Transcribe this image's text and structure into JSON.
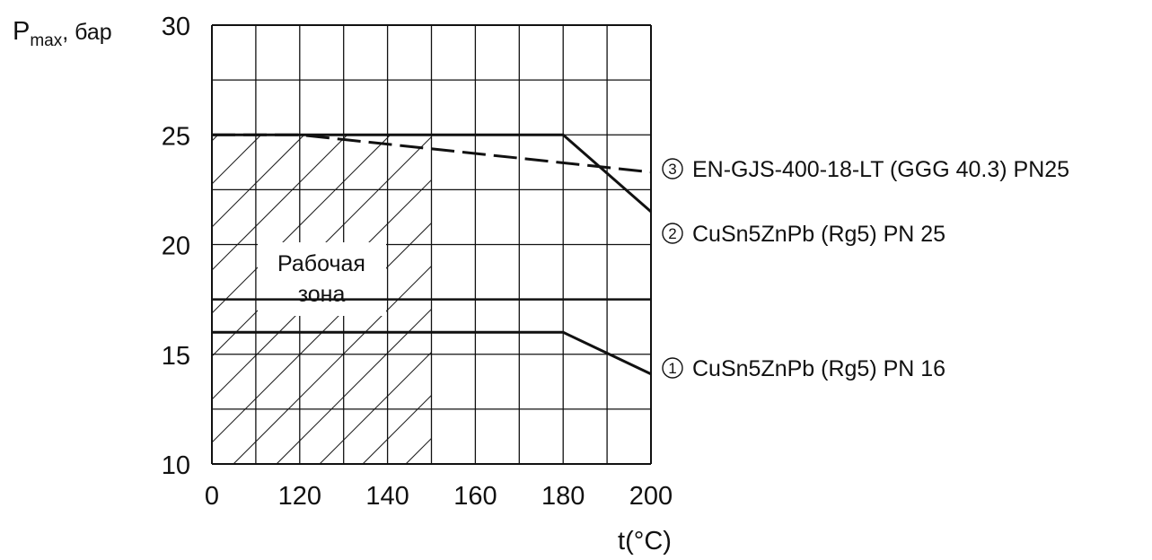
{
  "chart_data": {
    "type": "line",
    "ylabel_main": "P",
    "ylabel_sub": "max",
    "ylabel_unit": ", бар",
    "xlabel": "t(°C)",
    "x_categories": [
      "0",
      "120",
      "140",
      "160",
      "180",
      "200"
    ],
    "y_ticks": [
      10,
      15,
      20,
      25,
      30
    ],
    "ylim": [
      10,
      30
    ],
    "grid": true,
    "zone_label_lines": [
      "Рабочая",
      "зона"
    ],
    "zone_to_category": "150",
    "series": [
      {
        "name": "EN-GJS-400-18-LT (GGG 40.3) PN25",
        "marker": "3",
        "style": "dashed",
        "points": [
          [
            "0",
            25
          ],
          [
            "120",
            25
          ],
          [
            "200",
            23.3
          ]
        ]
      },
      {
        "name": "CuSn5ZnPb (Rg5) PN 25",
        "marker": "2",
        "style": "solid",
        "points": [
          [
            "0",
            25
          ],
          [
            "180",
            25
          ],
          [
            "200",
            21.5
          ]
        ]
      },
      {
        "name": "CuSn5ZnPb (Rg5) PN 16",
        "marker": "1",
        "style": "solid",
        "points": [
          [
            "0",
            16
          ],
          [
            "180",
            16
          ],
          [
            "200",
            14.1
          ]
        ]
      }
    ],
    "reference_line": 17.5
  }
}
